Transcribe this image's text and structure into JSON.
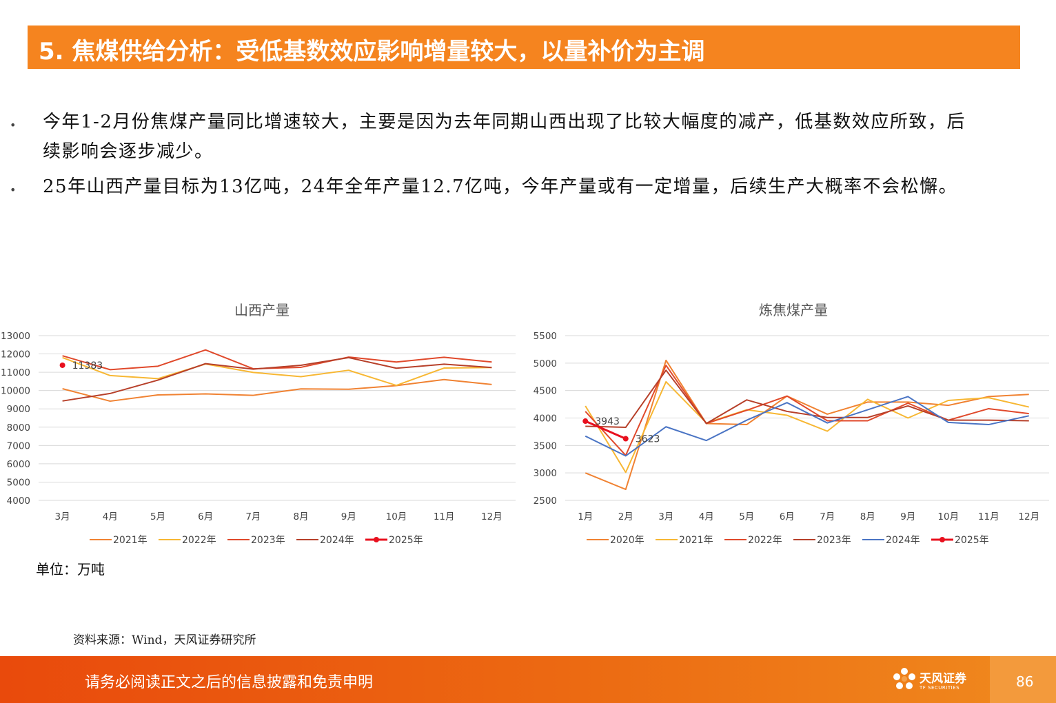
{
  "header": {
    "title": "5. 焦煤供给分析：受低基数效应影响增量较大，以量补价为主调"
  },
  "bullets": [
    {
      "text": "今年1-2月份焦煤产量同比增速较大，主要是因为去年同期山西出现了比较大幅度的减产，低基数效应所致，后续影响会逐步减少。"
    },
    {
      "text": "25年山西产量目标为13亿吨，24年全年产量12.7亿吨，今年产量或有一定增量，后续生产大概率不会松懈。"
    }
  ],
  "unit_note": "单位：万吨",
  "source_note": "资料来源：Wind，天风证券研究所",
  "footer": {
    "disclaimer": "请务必阅读正文之后的信息披露和免责申明",
    "logo_cn": "天风证券",
    "logo_en": "TF SECURITIES",
    "page": "86"
  },
  "chart_data": [
    {
      "type": "line",
      "title": "山西产量",
      "categories": [
        "3月",
        "4月",
        "5月",
        "6月",
        "7月",
        "8月",
        "9月",
        "10月",
        "11月",
        "12月"
      ],
      "ylim": [
        4000,
        13000
      ],
      "yticks": [
        4000,
        5000,
        6000,
        7000,
        8000,
        9000,
        10000,
        11000,
        12000,
        13000
      ],
      "grid": true,
      "legend": "bottom",
      "series": [
        {
          "name": "2021年",
          "color": "#f08232",
          "values": [
            10100,
            9420,
            9760,
            9820,
            9740,
            10090,
            10070,
            10270,
            10600,
            10330
          ]
        },
        {
          "name": "2022年",
          "color": "#f7b733",
          "values": [
            11800,
            10820,
            10650,
            11450,
            10990,
            10760,
            11110,
            10280,
            11230,
            11260
          ]
        },
        {
          "name": "2023年",
          "color": "#e0492b",
          "values": [
            11900,
            11140,
            11330,
            12220,
            11190,
            11270,
            11830,
            11560,
            11820,
            11560
          ]
        },
        {
          "name": "2024年",
          "color": "#b7402a",
          "values": [
            9430,
            9840,
            10570,
            11470,
            11170,
            11380,
            11800,
            11220,
            11440,
            11260
          ]
        },
        {
          "name": "2025年",
          "color": "#e8101e",
          "values": [
            11383,
            null,
            null,
            null,
            null,
            null,
            null,
            null,
            null,
            null
          ],
          "labels": [
            "11383"
          ]
        }
      ]
    },
    {
      "type": "line",
      "title": "炼焦煤产量",
      "categories": [
        "1月",
        "2月",
        "3月",
        "4月",
        "5月",
        "6月",
        "7月",
        "8月",
        "9月",
        "10月",
        "11月",
        "12月"
      ],
      "ylim": [
        2500,
        5500
      ],
      "yticks": [
        2500,
        3000,
        3500,
        4000,
        4500,
        5000,
        5500
      ],
      "grid": true,
      "legend": "bottom",
      "series": [
        {
          "name": "2020年",
          "color": "#f08232",
          "values": [
            3000,
            2700,
            5050,
            3900,
            3880,
            4400,
            4070,
            4290,
            4290,
            4230,
            4390,
            4430
          ]
        },
        {
          "name": "2021年",
          "color": "#f7b733",
          "values": [
            4220,
            3010,
            4660,
            3910,
            4150,
            4050,
            3760,
            4340,
            4000,
            4320,
            4370,
            4200
          ]
        },
        {
          "name": "2022年",
          "color": "#e0492b",
          "values": [
            4120,
            3320,
            4960,
            3900,
            4140,
            4400,
            3950,
            3950,
            4270,
            3960,
            4170,
            4080
          ]
        },
        {
          "name": "2023年",
          "color": "#b7402a",
          "values": [
            3850,
            3830,
            4870,
            3900,
            4330,
            4120,
            4010,
            4010,
            4220,
            3960,
            3960,
            3950
          ]
        },
        {
          "name": "2024年",
          "color": "#4a74c4",
          "values": [
            3670,
            3310,
            3840,
            3590,
            3960,
            4280,
            3910,
            4150,
            4390,
            3920,
            3880,
            4040
          ]
        },
        {
          "name": "2025年",
          "color": "#e8101e",
          "values": [
            3943,
            3623,
            null,
            null,
            null,
            null,
            null,
            null,
            null,
            null,
            null,
            null
          ],
          "labels": [
            "3943",
            "3623"
          ]
        }
      ]
    }
  ]
}
